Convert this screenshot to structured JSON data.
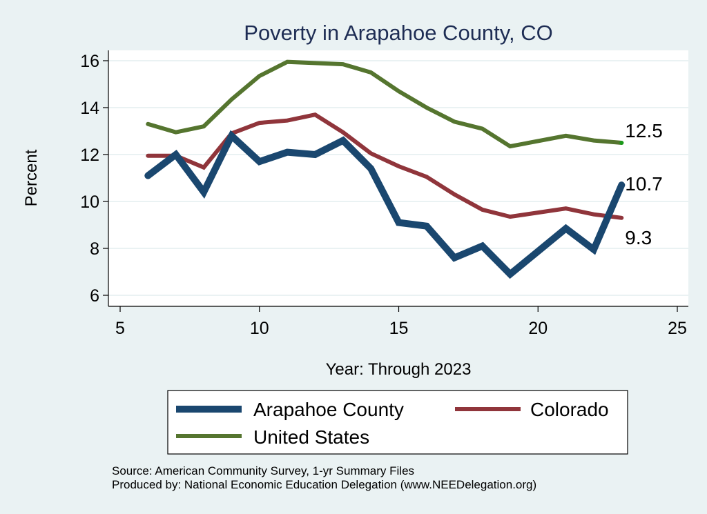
{
  "chart_data": {
    "type": "line",
    "title": "Poverty in Arapahoe County, CO",
    "xlabel": "Year: Through 2023",
    "ylabel": "Percent",
    "xlim": [
      5,
      25
    ],
    "ylim": [
      6,
      16
    ],
    "xticks": [
      5,
      10,
      15,
      20,
      25
    ],
    "yticks": [
      6,
      8,
      10,
      12,
      14,
      16
    ],
    "grid": true,
    "legend_position": "bottom",
    "series": [
      {
        "name": "Arapahoe County",
        "color": "#1a476f",
        "x": [
          6,
          7,
          8,
          9,
          10,
          11,
          12,
          13,
          14,
          15,
          16,
          17,
          18,
          19,
          21,
          22,
          23
        ],
        "values": [
          11.1,
          12.0,
          10.4,
          12.8,
          11.7,
          12.1,
          12.0,
          12.6,
          11.4,
          9.1,
          8.95,
          7.6,
          8.1,
          6.9,
          8.85,
          7.95,
          10.7
        ],
        "end_label": "10.7"
      },
      {
        "name": "Colorado",
        "color": "#90353b",
        "x": [
          6,
          7,
          8,
          9,
          10,
          11,
          12,
          13,
          14,
          15,
          16,
          17,
          18,
          19,
          21,
          22,
          23
        ],
        "values": [
          11.95,
          11.95,
          11.45,
          12.9,
          13.35,
          13.45,
          13.7,
          12.95,
          12.05,
          11.5,
          11.05,
          10.3,
          9.65,
          9.35,
          9.7,
          9.45,
          9.3
        ],
        "end_label": "9.3"
      },
      {
        "name": "United States",
        "color": "#55752f",
        "x": [
          6,
          7,
          8,
          9,
          10,
          11,
          12,
          13,
          14,
          15,
          16,
          17,
          18,
          19,
          21,
          22,
          23
        ],
        "values": [
          13.3,
          12.95,
          13.2,
          14.35,
          15.35,
          15.95,
          15.9,
          15.85,
          15.5,
          14.7,
          14.0,
          13.4,
          13.1,
          12.35,
          12.8,
          12.6,
          12.5
        ],
        "end_label": "12.5"
      }
    ],
    "notes": [
      "Source: American Community Survey, 1-yr Summary Files",
      "Produced by: National Economic Education Delegation (www.NEEDelegation.org)"
    ]
  }
}
